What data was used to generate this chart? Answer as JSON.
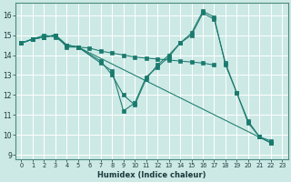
{
  "xlabel": "Humidex (Indice chaleur)",
  "bg_color": "#cce9e5",
  "line_color": "#1a7a6e",
  "grid_color": "#b0d8d4",
  "xlim": [
    -0.5,
    23.5
  ],
  "ylim": [
    8.8,
    16.6
  ],
  "yticks": [
    9,
    10,
    11,
    12,
    13,
    14,
    15,
    16
  ],
  "xticks": [
    0,
    1,
    2,
    3,
    4,
    5,
    6,
    7,
    8,
    9,
    10,
    11,
    12,
    13,
    14,
    15,
    16,
    17,
    18,
    19,
    20,
    21,
    22,
    23
  ],
  "series": [
    {
      "x": [
        0,
        1,
        2,
        3,
        4,
        5,
        22
      ],
      "y": [
        14.6,
        14.8,
        14.9,
        15.0,
        14.5,
        14.4,
        9.6
      ]
    },
    {
      "x": [
        0,
        1,
        2,
        3,
        4,
        5,
        7,
        8,
        9,
        10,
        11,
        12,
        13,
        14,
        15,
        16,
        17,
        18,
        19,
        20,
        21,
        22
      ],
      "y": [
        14.6,
        14.8,
        14.9,
        15.0,
        14.4,
        14.4,
        13.7,
        13.0,
        12.0,
        11.5,
        12.8,
        13.5,
        14.0,
        14.6,
        15.1,
        16.2,
        15.9,
        13.5,
        12.1,
        10.7,
        9.9,
        9.6
      ]
    },
    {
      "x": [
        0,
        1,
        2,
        3,
        4,
        5,
        7,
        8,
        9,
        10,
        11,
        12,
        13,
        14,
        15,
        16,
        17,
        18,
        19,
        20,
        21,
        22
      ],
      "y": [
        14.6,
        14.8,
        15.0,
        14.9,
        14.5,
        14.4,
        13.6,
        13.2,
        11.2,
        11.6,
        12.9,
        13.4,
        13.9,
        14.6,
        15.0,
        16.1,
        15.8,
        13.6,
        12.1,
        10.6,
        9.9,
        9.7
      ]
    },
    {
      "x": [
        0,
        1,
        2,
        3,
        4,
        5,
        6,
        7,
        8,
        9,
        10,
        11,
        12,
        13,
        14,
        15,
        16,
        17
      ],
      "y": [
        14.6,
        14.8,
        14.9,
        15.0,
        14.5,
        14.4,
        14.35,
        14.2,
        14.1,
        14.0,
        13.9,
        13.85,
        13.8,
        13.75,
        13.7,
        13.65,
        13.6,
        13.5
      ]
    }
  ]
}
